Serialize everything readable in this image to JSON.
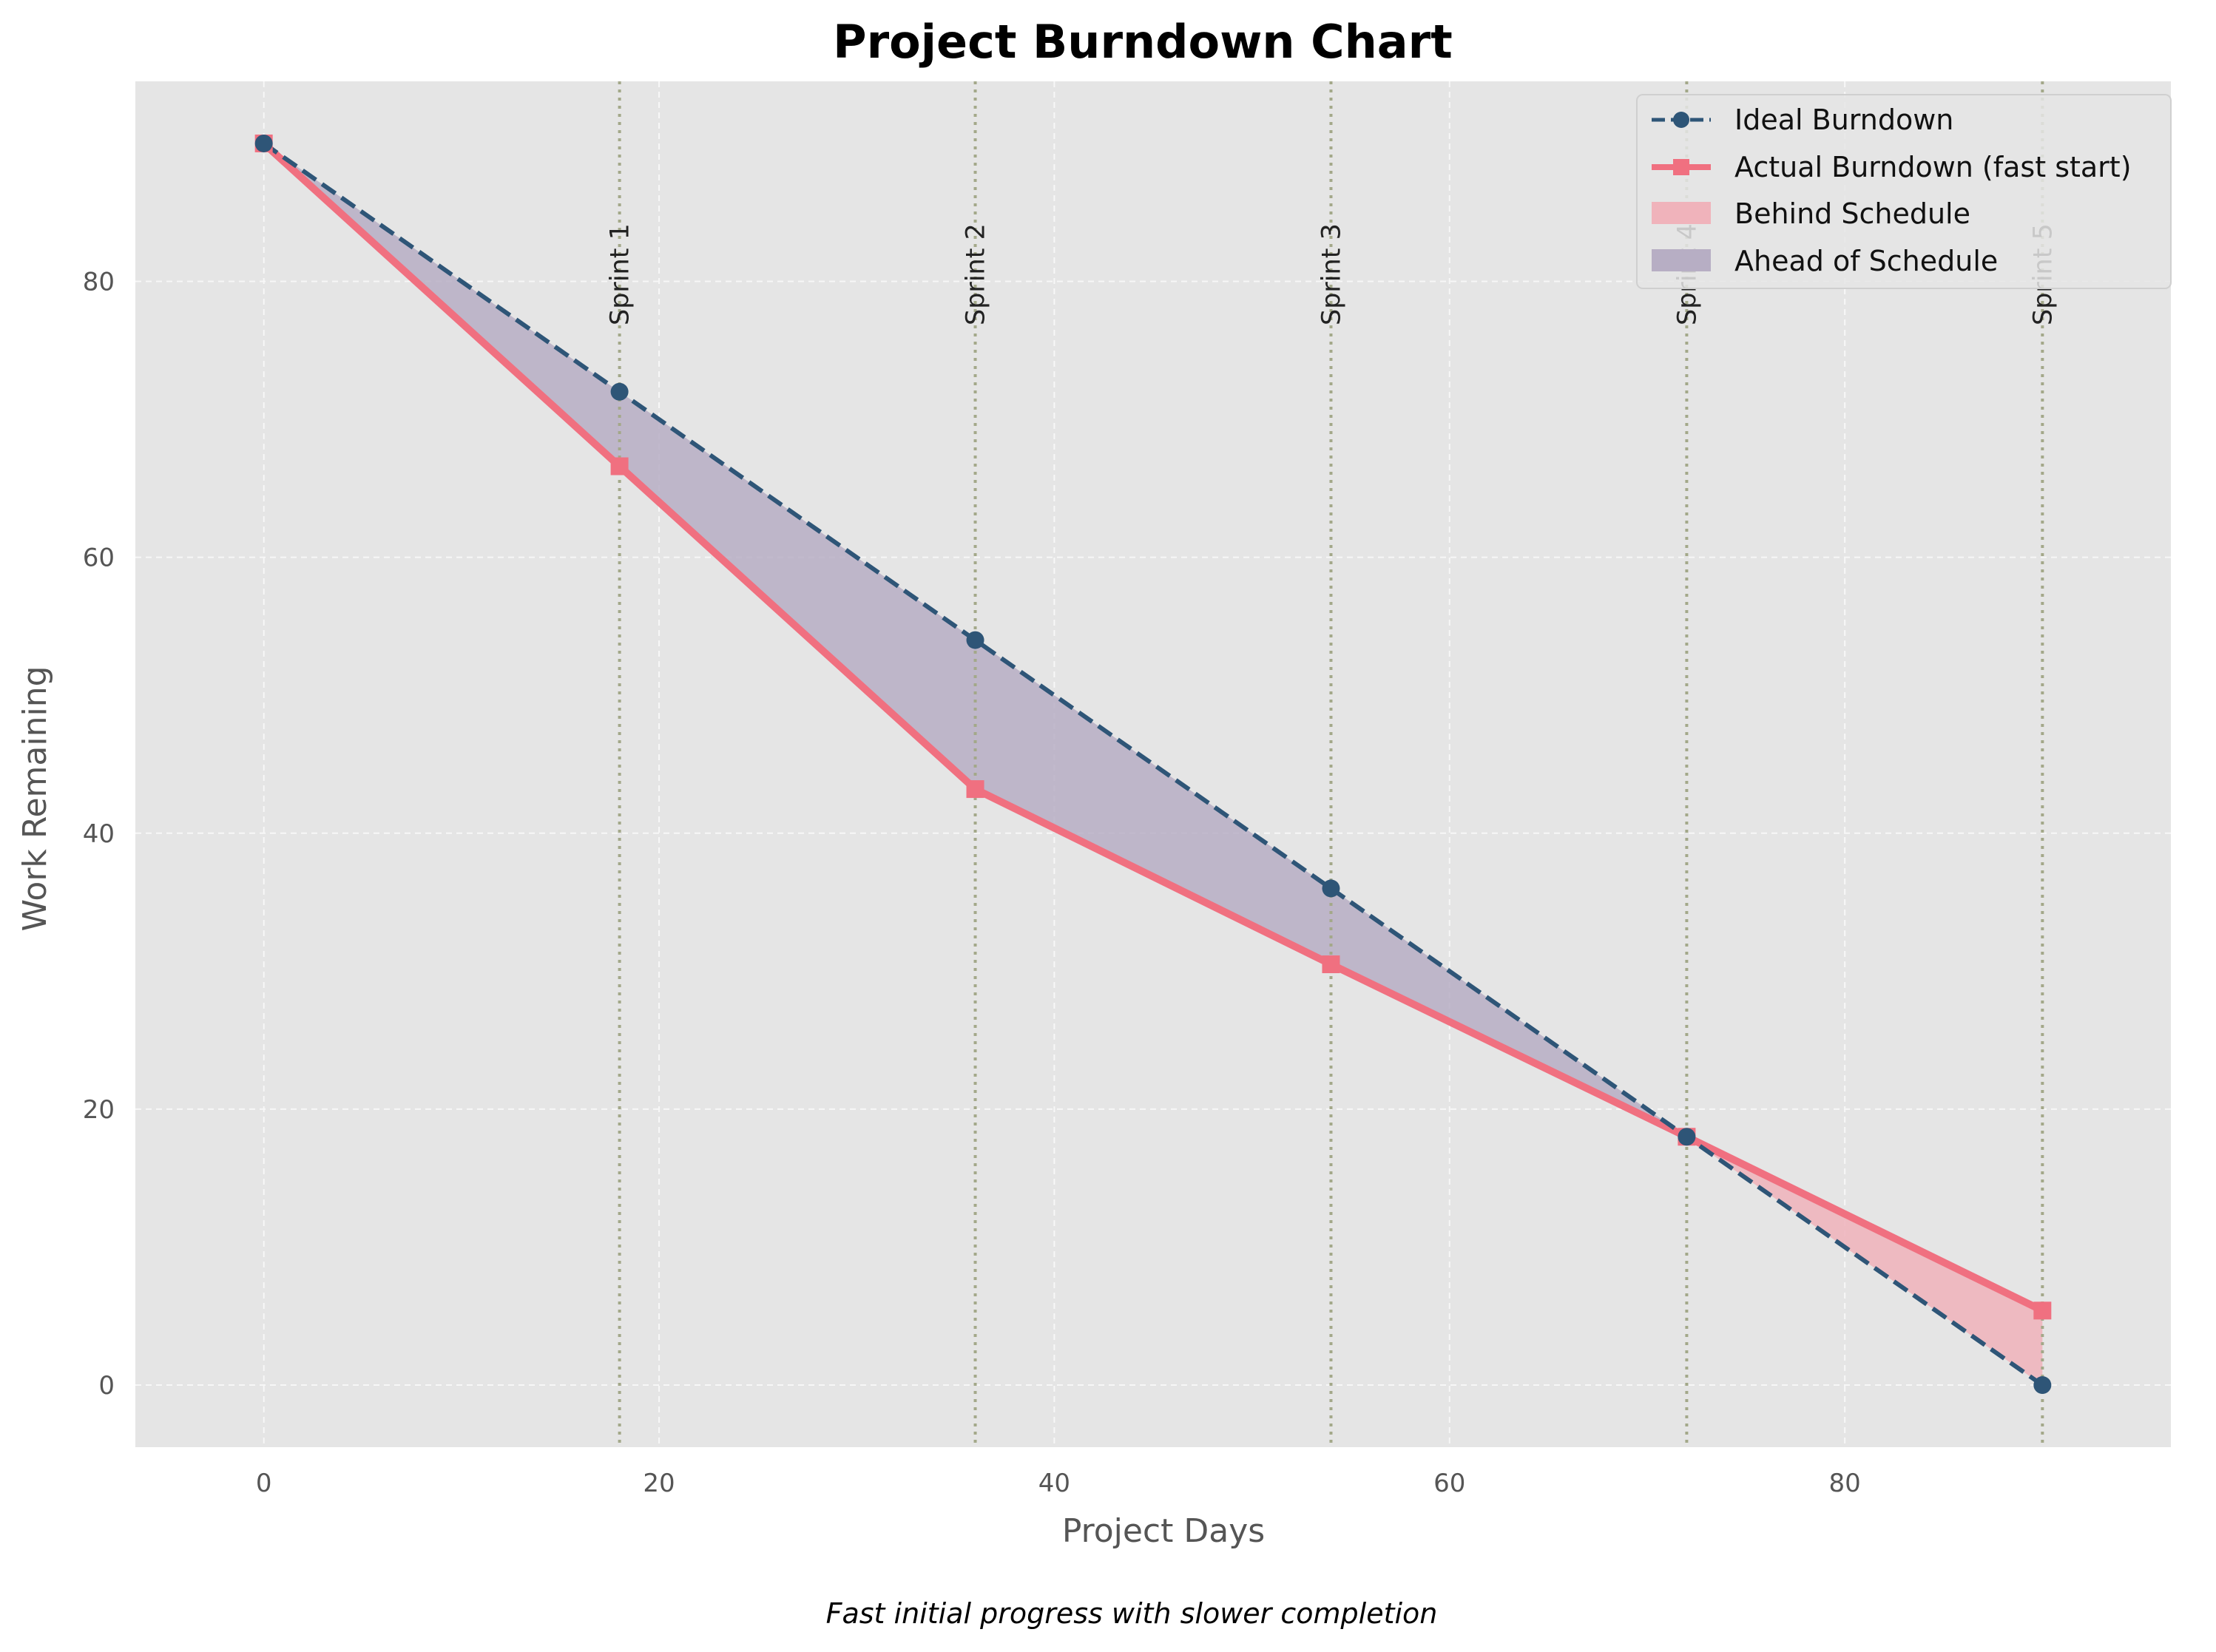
{
  "chart_data": {
    "type": "line",
    "title": "Project Burndown Chart",
    "caption": "Fast initial progress with slower completion",
    "xlabel": "Project Days",
    "ylabel": "Work Remaining",
    "xlim": [
      -6.5,
      96.5
    ],
    "ylim": [
      -4.5,
      94.5
    ],
    "xticks": [
      0,
      20,
      40,
      60,
      80
    ],
    "yticks": [
      0,
      20,
      40,
      60,
      80
    ],
    "grid": true,
    "legend_position": "top-right",
    "series": [
      {
        "name": "Ideal Burndown",
        "style": "dashed",
        "marker": "circle",
        "color": "#2e5577",
        "x": [
          0,
          18,
          36,
          54,
          72,
          90
        ],
        "values": [
          90,
          72,
          54,
          36,
          18,
          0
        ]
      },
      {
        "name": "Actual Burndown (fast start)",
        "style": "solid",
        "marker": "square",
        "color": "#f07080",
        "x": [
          0,
          18,
          36,
          54,
          72,
          90
        ],
        "values": [
          90,
          66.6,
          43.2,
          30.5,
          18,
          5.4
        ]
      }
    ],
    "fills": [
      {
        "name": "Behind Schedule",
        "color": "#f0b3bb"
      },
      {
        "name": "Ahead of Schedule",
        "color": "#b7aec4"
      }
    ],
    "sprints": [
      {
        "label": "Sprint 1",
        "x": 18
      },
      {
        "label": "Sprint 2",
        "x": 36
      },
      {
        "label": "Sprint 3",
        "x": 54
      },
      {
        "label": "Sprint 4",
        "x": 72
      },
      {
        "label": "Sprint 5",
        "x": 90
      }
    ],
    "colors": {
      "plot_bg": "#e5e5e5",
      "grid": "#f7f7f7",
      "sprint_line": "#a3a889"
    }
  }
}
